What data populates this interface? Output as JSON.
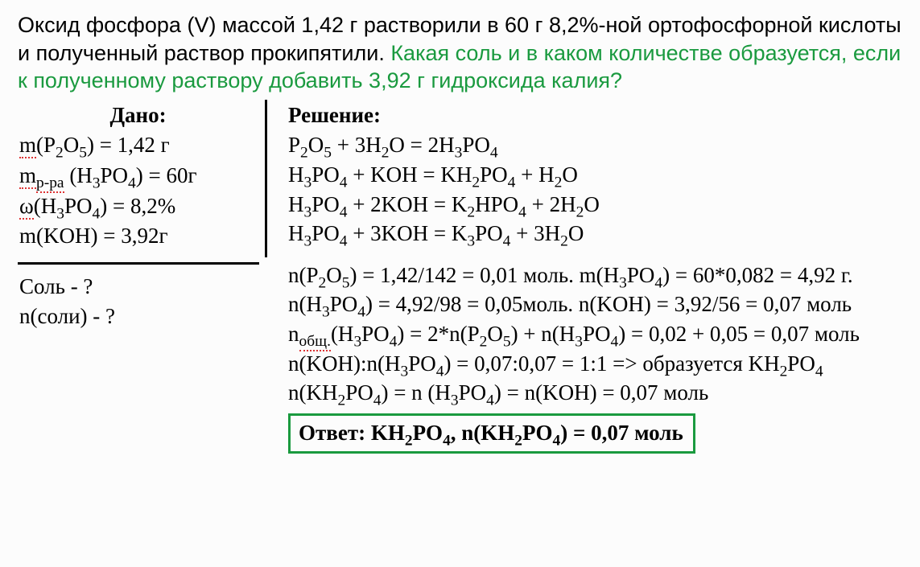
{
  "problem": {
    "part1": "Оксид фосфора (V) массой 1,42 г растворили в 60 г 8,2%-ной ортофосфорной кислоты и полученный раствор прокипятили. ",
    "question": "Какая соль и в каком количестве образуется, если к полученному раствору добавить 3,92 г гидроксида калия?"
  },
  "given": {
    "title": "Дано:",
    "l1a": "m",
    "l1b": "(P",
    "l1c": "O",
    "l1d": ") = 1,42 г",
    "l2a": "m",
    "l2b": " (H",
    "l2c": "PO",
    "l2d": ") = 60г",
    "l3a": "ω",
    "l3b": "(H",
    "l3c": "PO",
    "l3d": ") = 8,2%",
    "l4": "m(KOH) = 3,92г"
  },
  "find": {
    "f1": "Соль - ?",
    "f2": "n(соли) - ?"
  },
  "solution": {
    "title": "Решение:",
    "eq1a": "P",
    "eq1b": "O",
    "eq1c": " + 3H",
    "eq1d": "O = 2H",
    "eq1e": "PO",
    "eq2a": "H",
    "eq2b": "PO",
    "eq2c": " + KOH = KH",
    "eq2d": "PO",
    "eq2e": " + H",
    "eq2f": "O",
    "eq3a": "H",
    "eq3b": "PO",
    "eq3c": " + 2KOH = K",
    "eq3d": "HPO",
    "eq3e": " + 2H",
    "eq3f": "O",
    "eq4a": "H",
    "eq4b": "PO",
    "eq4c": " + 3KOH = K",
    "eq4d": "PO",
    "eq4e": " + 3H",
    "eq4f": "O",
    "c1a": "n(P",
    "c1b": "O",
    "c1c": ") = 1,42/142 = 0,01 моль. m(H",
    "c1d": "PO",
    "c1e": ") = 60*0,082 = 4,92 г.",
    "c2a": "n(H",
    "c2b": "PO",
    "c2c": ") = 4,92/98 = 0,05моль. n(KOH) = 3,92/56 = 0,07 моль",
    "c3a": "n",
    "c3b": "(H",
    "c3c": "PO",
    "c3d": ") = 2*n(P",
    "c3e": "O",
    "c3f": ") + n(H",
    "c3g": "PO",
    "c3h": ") = 0,02 + 0,05 = 0,07 моль",
    "c4a": "n(KOH):n(H",
    "c4b": "PO",
    "c4c": ") = 0,07:0,07 = 1:1 => образуется KH",
    "c4d": "PO",
    "c5a": "n(KH",
    "c5b": "PO",
    "c5c": ") = n (H",
    "c5d": "PO",
    "c5e": ") = n(KOH) = 0,07 моль"
  },
  "answer": {
    "a1": "Ответ: KH",
    "a2": "PO",
    "a3": ", n(KH",
    "a4": "PO",
    "a5": ") = 0,07 моль"
  },
  "sub": {
    "two": "2",
    "three": "3",
    "four": "4",
    "five": "5",
    "ppa": "р-ра",
    "obsh": "общ."
  },
  "colors": {
    "green": "#1a9a3f"
  }
}
